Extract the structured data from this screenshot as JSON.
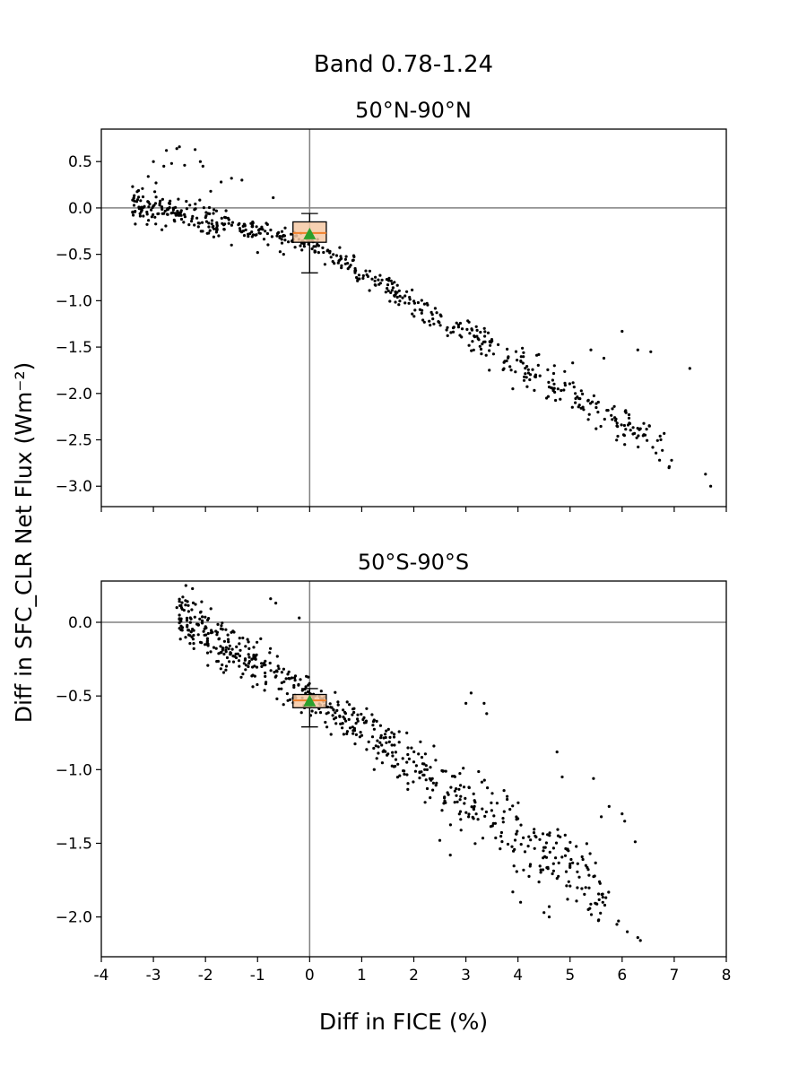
{
  "figure": {
    "suptitle": "Band 0.78-1.24",
    "xlabel": "Diff in FICE (%)",
    "ylabel": "Diff in SFC_CLR Net Flux (Wm⁻²)"
  },
  "chart_data": [
    {
      "type": "scatter",
      "title": "50°N-90°N",
      "xlim": [
        -4,
        8
      ],
      "ylim": [
        -3.22,
        0.85
      ],
      "xticks": [
        -4,
        -3,
        -2,
        -1,
        0,
        1,
        2,
        3,
        4,
        5,
        6,
        7,
        8
      ],
      "xticklabels_shown": false,
      "yticks": [
        0.5,
        0.0,
        -0.5,
        -1.0,
        -1.5,
        -2.0,
        -2.5,
        -3.0
      ],
      "yticklabels": [
        "0.5",
        "0.0",
        "−0.5",
        "−1.0",
        "−1.5",
        "−2.0",
        "−2.5",
        "−3.0"
      ],
      "reference_lines": {
        "x": 0,
        "y": 0
      },
      "points_color": "#000000",
      "trend": {
        "anchors": [
          [
            -3.4,
            0.05
          ],
          [
            0,
            -0.38
          ],
          [
            8,
            -2.95
          ]
        ],
        "spread": 0.28,
        "n_points": 560,
        "x_extent": [
          -3.4,
          7.7
        ]
      },
      "points": [
        [
          -3.4,
          0.23
        ],
        [
          -3.2,
          0.12
        ],
        [
          -3.1,
          0.34
        ],
        [
          -3.0,
          0.5
        ],
        [
          -2.95,
          0.27
        ],
        [
          -2.8,
          0.45
        ],
        [
          -2.75,
          0.62
        ],
        [
          -2.65,
          0.48
        ],
        [
          -2.55,
          0.64
        ],
        [
          -2.5,
          0.66
        ],
        [
          -2.4,
          0.46
        ],
        [
          -2.3,
          0.03
        ],
        [
          -2.2,
          0.63
        ],
        [
          -2.1,
          0.5
        ],
        [
          -2.05,
          0.45
        ],
        [
          -1.9,
          0.18
        ],
        [
          -1.7,
          0.28
        ],
        [
          -1.5,
          0.32
        ],
        [
          -1.3,
          0.3
        ],
        [
          -0.7,
          0.11
        ],
        [
          -2.6,
          -0.13
        ],
        [
          -1.95,
          -0.06
        ],
        [
          -1.5,
          -0.4
        ],
        [
          -1.0,
          -0.48
        ],
        [
          -0.5,
          -0.5
        ],
        [
          7.7,
          -3.0
        ],
        [
          7.6,
          -2.87
        ],
        [
          7.3,
          -1.73
        ],
        [
          6.9,
          -2.8
        ],
        [
          6.95,
          -2.72
        ],
        [
          6.55,
          -1.55
        ],
        [
          6.35,
          -2.38
        ],
        [
          6.3,
          -1.53
        ],
        [
          6.05,
          -2.55
        ],
        [
          6.0,
          -1.33
        ],
        [
          5.9,
          -2.35
        ],
        [
          5.85,
          -2.14
        ],
        [
          5.65,
          -1.62
        ],
        [
          5.5,
          -2.38
        ],
        [
          5.4,
          -1.53
        ],
        [
          5.35,
          -2.28
        ],
        [
          5.1,
          -2.0
        ],
        [
          5.1,
          -2.1
        ],
        [
          5.05,
          -1.67
        ],
        [
          4.7,
          -1.7
        ],
        [
          4.6,
          -1.93
        ],
        [
          4.55,
          -2.05
        ],
        [
          4.4,
          -1.58
        ],
        [
          3.9,
          -1.95
        ],
        [
          3.45,
          -1.75
        ],
        [
          3.2,
          -1.28
        ]
      ],
      "boxplot": {
        "q1": -0.37,
        "median": -0.27,
        "q3": -0.15,
        "whisker_low": -0.7,
        "whisker_high": -0.06,
        "mean": -0.29,
        "box_x_halfwidth": 0.32
      }
    },
    {
      "type": "scatter",
      "title": "50°S-90°S",
      "xlim": [
        -4,
        8
      ],
      "ylim": [
        -2.27,
        0.28
      ],
      "xticks": [
        -4,
        -3,
        -2,
        -1,
        0,
        1,
        2,
        3,
        4,
        5,
        6,
        7,
        8
      ],
      "xticklabels": [
        "-4",
        "-3",
        "-2",
        "-1",
        "0",
        "1",
        "2",
        "3",
        "4",
        "5",
        "6",
        "7",
        "8"
      ],
      "yticks": [
        0.0,
        -0.5,
        -1.0,
        -1.5,
        -2.0
      ],
      "yticklabels": [
        "0.0",
        "−0.5",
        "−1.0",
        "−1.5",
        "−2.0"
      ],
      "reference_lines": {
        "x": 0,
        "y": 0
      },
      "points_color": "#000000",
      "trend": {
        "anchors": [
          [
            -2.6,
            0.05
          ],
          [
            0,
            -0.5
          ],
          [
            6.4,
            -2.0
          ]
        ],
        "spread": 0.32,
        "n_points": 640,
        "x_extent": [
          -2.5,
          6.4
        ]
      },
      "points": [
        [
          -2.55,
          0.1
        ],
        [
          -2.35,
          -0.02
        ],
        [
          -2.0,
          -0.03
        ],
        [
          -1.9,
          -0.2
        ],
        [
          -0.75,
          0.16
        ],
        [
          -0.65,
          0.13
        ],
        [
          -0.2,
          0.03
        ],
        [
          6.35,
          -2.16
        ],
        [
          6.3,
          -2.14
        ],
        [
          6.25,
          -1.49
        ],
        [
          6.1,
          -2.1
        ],
        [
          6.0,
          -1.3
        ],
        [
          6.05,
          -1.35
        ],
        [
          5.9,
          -2.05
        ],
        [
          5.75,
          -1.25
        ],
        [
          5.6,
          -1.32
        ],
        [
          5.55,
          -2.02
        ],
        [
          5.45,
          -1.06
        ],
        [
          5.35,
          -1.95
        ],
        [
          5.3,
          -1.8
        ],
        [
          5.0,
          -1.79
        ],
        [
          4.85,
          -1.05
        ],
        [
          4.75,
          -0.88
        ],
        [
          4.6,
          -1.93
        ],
        [
          4.6,
          -2.0
        ],
        [
          4.5,
          -1.97
        ],
        [
          4.05,
          -1.9
        ],
        [
          3.9,
          -1.83
        ],
        [
          3.4,
          -0.62
        ],
        [
          3.35,
          -0.55
        ],
        [
          3.1,
          -0.48
        ],
        [
          3.0,
          -0.55
        ],
        [
          2.7,
          -1.58
        ],
        [
          2.5,
          -1.48
        ]
      ],
      "boxplot": {
        "q1": -0.58,
        "median": -0.53,
        "q3": -0.49,
        "whisker_low": -0.71,
        "whisker_high": -0.45,
        "mean": -0.54,
        "box_x_halfwidth": 0.32
      }
    }
  ],
  "colors": {
    "points": "#000000",
    "reference_line": "#808080",
    "box_fill": "#f6c9a4",
    "median_line": "#f07f2a",
    "mean_marker": "#2ca02c"
  }
}
